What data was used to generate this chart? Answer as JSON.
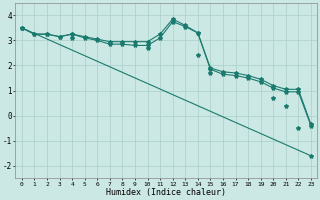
{
  "background_color": "#cce8e4",
  "grid_color": "#aacfca",
  "line_color": "#1a7a6e",
  "marker": "*",
  "xlabel": "Humidex (Indice chaleur)",
  "xlim": [
    -0.5,
    23.5
  ],
  "ylim": [
    -2.5,
    4.5
  ],
  "xticks": [
    0,
    1,
    2,
    3,
    4,
    5,
    6,
    7,
    8,
    9,
    10,
    11,
    12,
    13,
    14,
    15,
    16,
    17,
    18,
    19,
    20,
    21,
    22,
    23
  ],
  "yticks": [
    -2,
    -1,
    0,
    1,
    2,
    3,
    4
  ],
  "line1": {
    "x": [
      0,
      1,
      2,
      3,
      4,
      5,
      6,
      7,
      8,
      9,
      10,
      11,
      12,
      13,
      14,
      15,
      16,
      17,
      18,
      19,
      20,
      21,
      22,
      23
    ],
    "y": [
      3.5,
      3.25,
      3.25,
      3.15,
      3.25,
      3.15,
      3.05,
      2.95,
      2.95,
      2.95,
      2.95,
      3.25,
      3.85,
      3.6,
      3.3,
      1.9,
      1.75,
      1.7,
      1.6,
      1.45,
      1.2,
      1.05,
      1.05,
      -0.35
    ]
  },
  "line2": {
    "x": [
      0,
      1,
      2,
      3,
      4,
      5,
      6,
      7,
      8,
      9,
      10,
      11,
      12,
      13,
      14,
      15,
      16,
      17,
      18,
      19,
      20,
      21,
      22,
      23
    ],
    "y": [
      3.5,
      3.25,
      3.25,
      3.15,
      3.25,
      3.1,
      3.0,
      2.85,
      2.85,
      2.8,
      2.8,
      3.1,
      3.75,
      3.55,
      3.3,
      1.85,
      1.65,
      1.6,
      1.5,
      1.35,
      1.1,
      0.95,
      0.95,
      -0.4
    ]
  },
  "line3": {
    "x": [
      0,
      23
    ],
    "y": [
      3.5,
      -1.6
    ]
  },
  "line3_markers_x": [
    0,
    4,
    10,
    14,
    15,
    20,
    21,
    22,
    23
  ],
  "line3_markers_y": [
    3.5,
    3.1,
    2.7,
    2.4,
    1.7,
    0.7,
    0.4,
    -0.5,
    -1.6
  ]
}
